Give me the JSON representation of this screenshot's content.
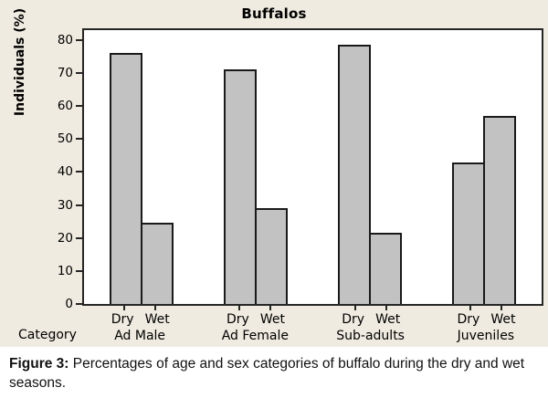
{
  "title": "Buffalos",
  "axes": {
    "y_label": "Individuals (%)",
    "x_corner_label": "Category"
  },
  "caption": {
    "label": "Figure 3:",
    "text": " Percentages of age and sex categories of buffalo during the dry and wet seasons."
  },
  "colors": {
    "panel_bg": "#efebe0",
    "plot_bg": "#ffffff",
    "frame": "#262626",
    "bar_fill": "#c2c2c2",
    "bar_border": "#1a1a1a",
    "text": "#000000"
  },
  "chart_data": {
    "type": "bar",
    "title": "Buffalos",
    "xlabel": "Category",
    "ylabel": "Individuals (%)",
    "categories": [
      "Ad Male",
      "Ad Female",
      "Sub-adults",
      "Juveniles"
    ],
    "series": [
      {
        "name": "Dry",
        "values": [
          76,
          71,
          78.5,
          43
        ]
      },
      {
        "name": "Wet",
        "values": [
          24.5,
          29,
          21.5,
          57
        ]
      }
    ],
    "y_ticks": [
      0,
      10,
      20,
      30,
      40,
      50,
      60,
      70,
      80
    ],
    "ylim": [
      0,
      83
    ],
    "grid": false,
    "legend_position": "none",
    "bar_arrangement": "paired side-by-side per category, seasons labeled under each bar"
  }
}
